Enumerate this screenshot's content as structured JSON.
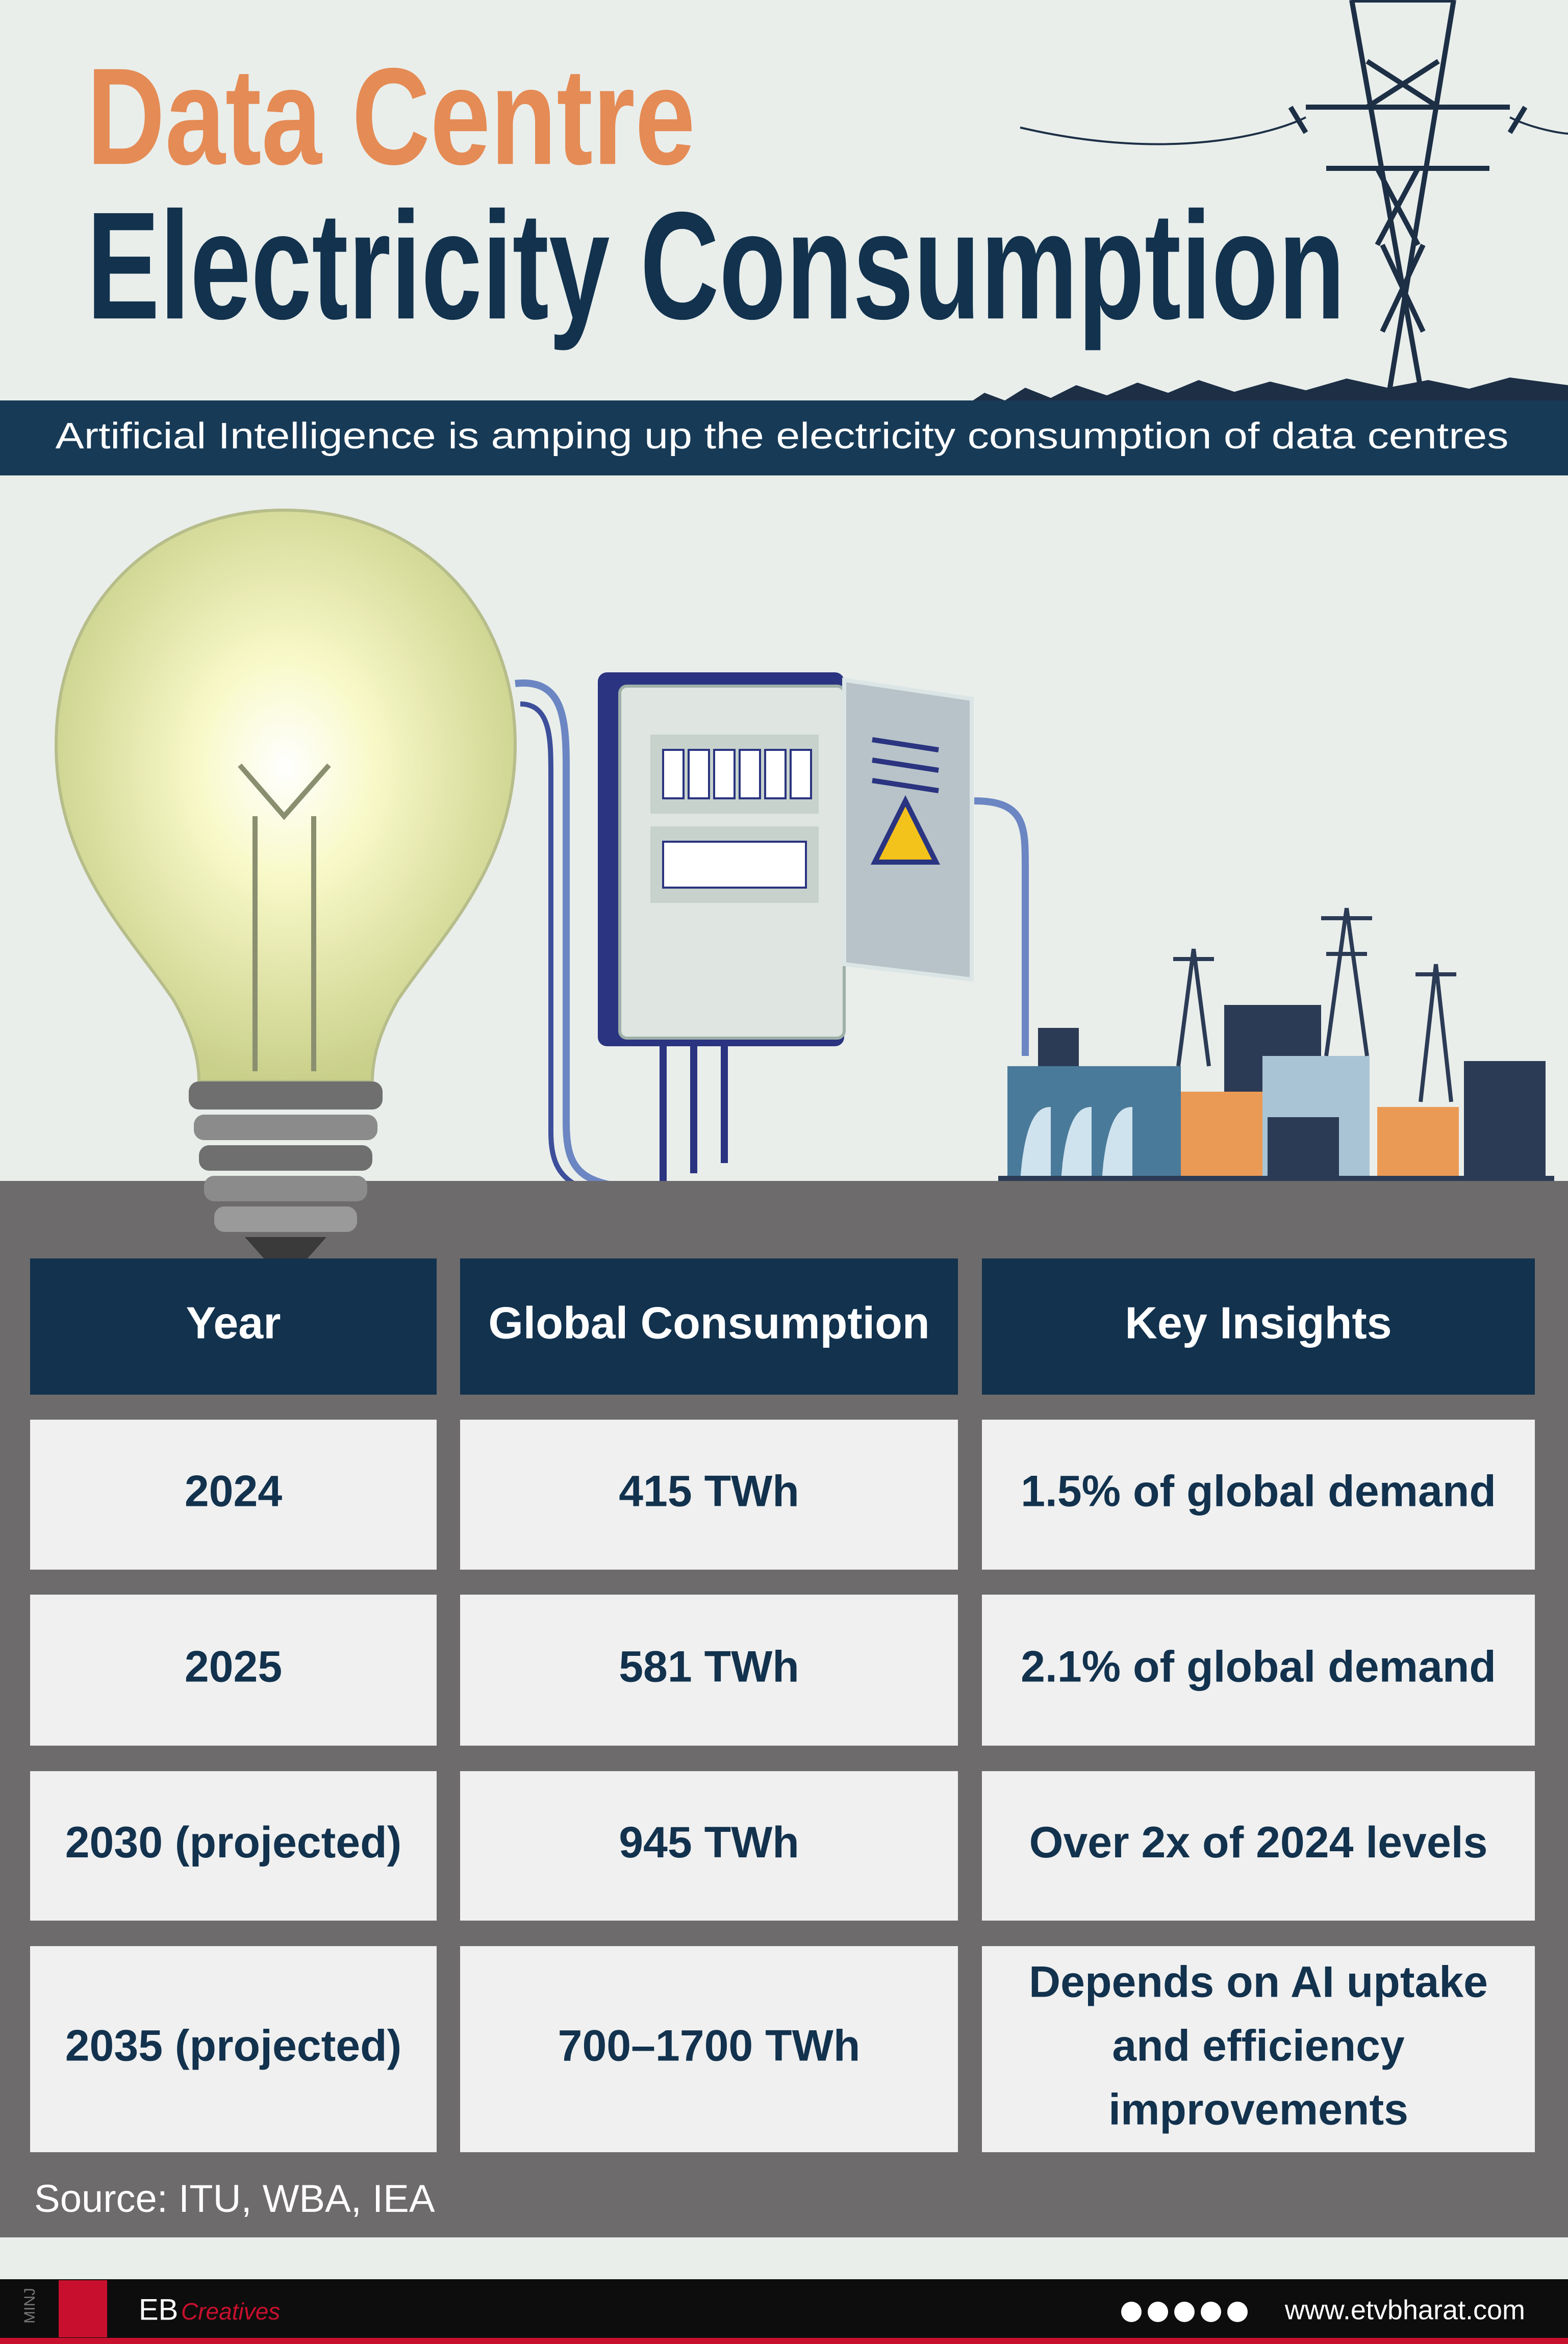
{
  "title": {
    "line1": "Data Centre",
    "line2": "Electricity Consumption"
  },
  "subtitle": "Artificial Intelligence is amping up the electricity consumption of data centres",
  "table": {
    "headers": [
      "Year",
      "Global Consumption",
      "Key Insights"
    ],
    "rows": [
      [
        "2024",
        "415 TWh",
        "1.5% of global demand"
      ],
      [
        "2025",
        "581 TWh",
        "2.1% of global demand"
      ],
      [
        "2030 (projected)",
        "945 TWh",
        "Over 2x of 2024 levels"
      ],
      [
        "2035 (projected)",
        "700–1700 TWh",
        [
          "Depends on AI uptake",
          "and efficiency",
          "improvements"
        ]
      ]
    ]
  },
  "source": "Source: ITU, WBA, IEA",
  "footer": {
    "credit": "MINJ",
    "brand": "EB",
    "tagline": "Creatives",
    "website": "www.etvbharat.com"
  }
}
